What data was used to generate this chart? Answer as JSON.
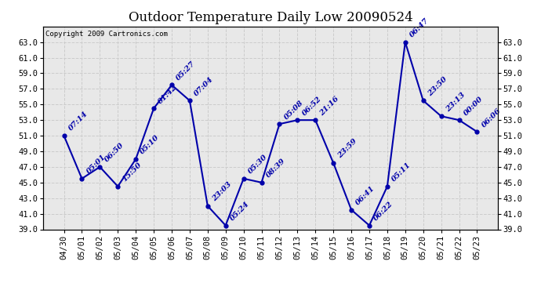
{
  "title": "Outdoor Temperature Daily Low 20090524",
  "copyright": "Copyright 2009 Cartronics.com",
  "x_labels": [
    "04/30",
    "05/01",
    "05/02",
    "05/03",
    "05/04",
    "05/05",
    "05/06",
    "05/07",
    "05/08",
    "05/09",
    "05/10",
    "05/11",
    "05/12",
    "05/13",
    "05/14",
    "05/15",
    "05/16",
    "05/17",
    "05/18",
    "05/19",
    "05/20",
    "05/21",
    "05/22",
    "05/23"
  ],
  "y_values": [
    51.0,
    45.5,
    47.0,
    44.5,
    48.0,
    54.5,
    57.5,
    55.5,
    42.0,
    39.5,
    45.5,
    45.0,
    52.5,
    53.0,
    53.0,
    47.5,
    41.5,
    39.5,
    44.5,
    63.0,
    55.5,
    53.5,
    53.0,
    51.5
  ],
  "time_labels": [
    "07:14",
    "05:01",
    "06:50",
    "15:50",
    "05:10",
    "01:42",
    "05:27",
    "07:04",
    "23:03",
    "05:24",
    "05:30",
    "08:39",
    "05:08",
    "06:52",
    "21:16",
    "23:59",
    "06:41",
    "06:22",
    "05:11",
    "06:47",
    "23:50",
    "23:13",
    "00:00",
    "06:06"
  ],
  "y_min": 39.0,
  "y_max": 65.0,
  "y_ticks": [
    39.0,
    41.0,
    43.0,
    45.0,
    47.0,
    49.0,
    51.0,
    53.0,
    55.0,
    57.0,
    59.0,
    61.0,
    63.0
  ],
  "line_color": "#0000aa",
  "marker_color": "#0000aa",
  "plot_bg_color": "#e8e8e8",
  "fig_bg_color": "#ffffff",
  "grid_color": "#cccccc",
  "title_fontsize": 12,
  "tick_fontsize": 7.5,
  "label_fontsize": 7,
  "copyright_fontsize": 6.5
}
